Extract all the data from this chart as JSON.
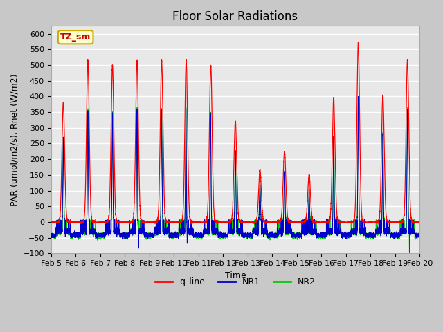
{
  "title": "Floor Solar Radiations",
  "xlabel": "Time",
  "ylabel": "PAR (umol/m2/s), Rnet (W/m2)",
  "ylim": [
    -100,
    625
  ],
  "yticks": [
    -100,
    -50,
    0,
    50,
    100,
    150,
    200,
    250,
    300,
    350,
    400,
    450,
    500,
    550,
    600
  ],
  "xtick_labels": [
    "Feb 5",
    "Feb 6",
    "Feb 7",
    "Feb 8",
    "Feb 9",
    "Feb 10",
    "Feb 11",
    "Feb 12",
    "Feb 13",
    "Feb 14",
    "Feb 15",
    "Feb 16",
    "Feb 17",
    "Feb 18",
    "Feb 19",
    "Feb 20"
  ],
  "legend_label_box": "TZ_sm",
  "legend_labels": [
    "q_line",
    "NR1",
    "NR2"
  ],
  "legend_colors": [
    "#ff0000",
    "#0000cc",
    "#00cc00"
  ],
  "plot_bg_color": "#e8e8e8",
  "fig_bg_color": "#c8c8c8",
  "grid_color": "#ffffff",
  "title_fontsize": 12,
  "axis_label_fontsize": 9,
  "tick_fontsize": 8,
  "q_peaks": [
    380,
    515,
    500,
    515,
    515,
    515,
    500,
    320,
    165,
    225,
    150,
    395,
    570,
    405,
    515
  ],
  "nr_ratio": 0.7
}
